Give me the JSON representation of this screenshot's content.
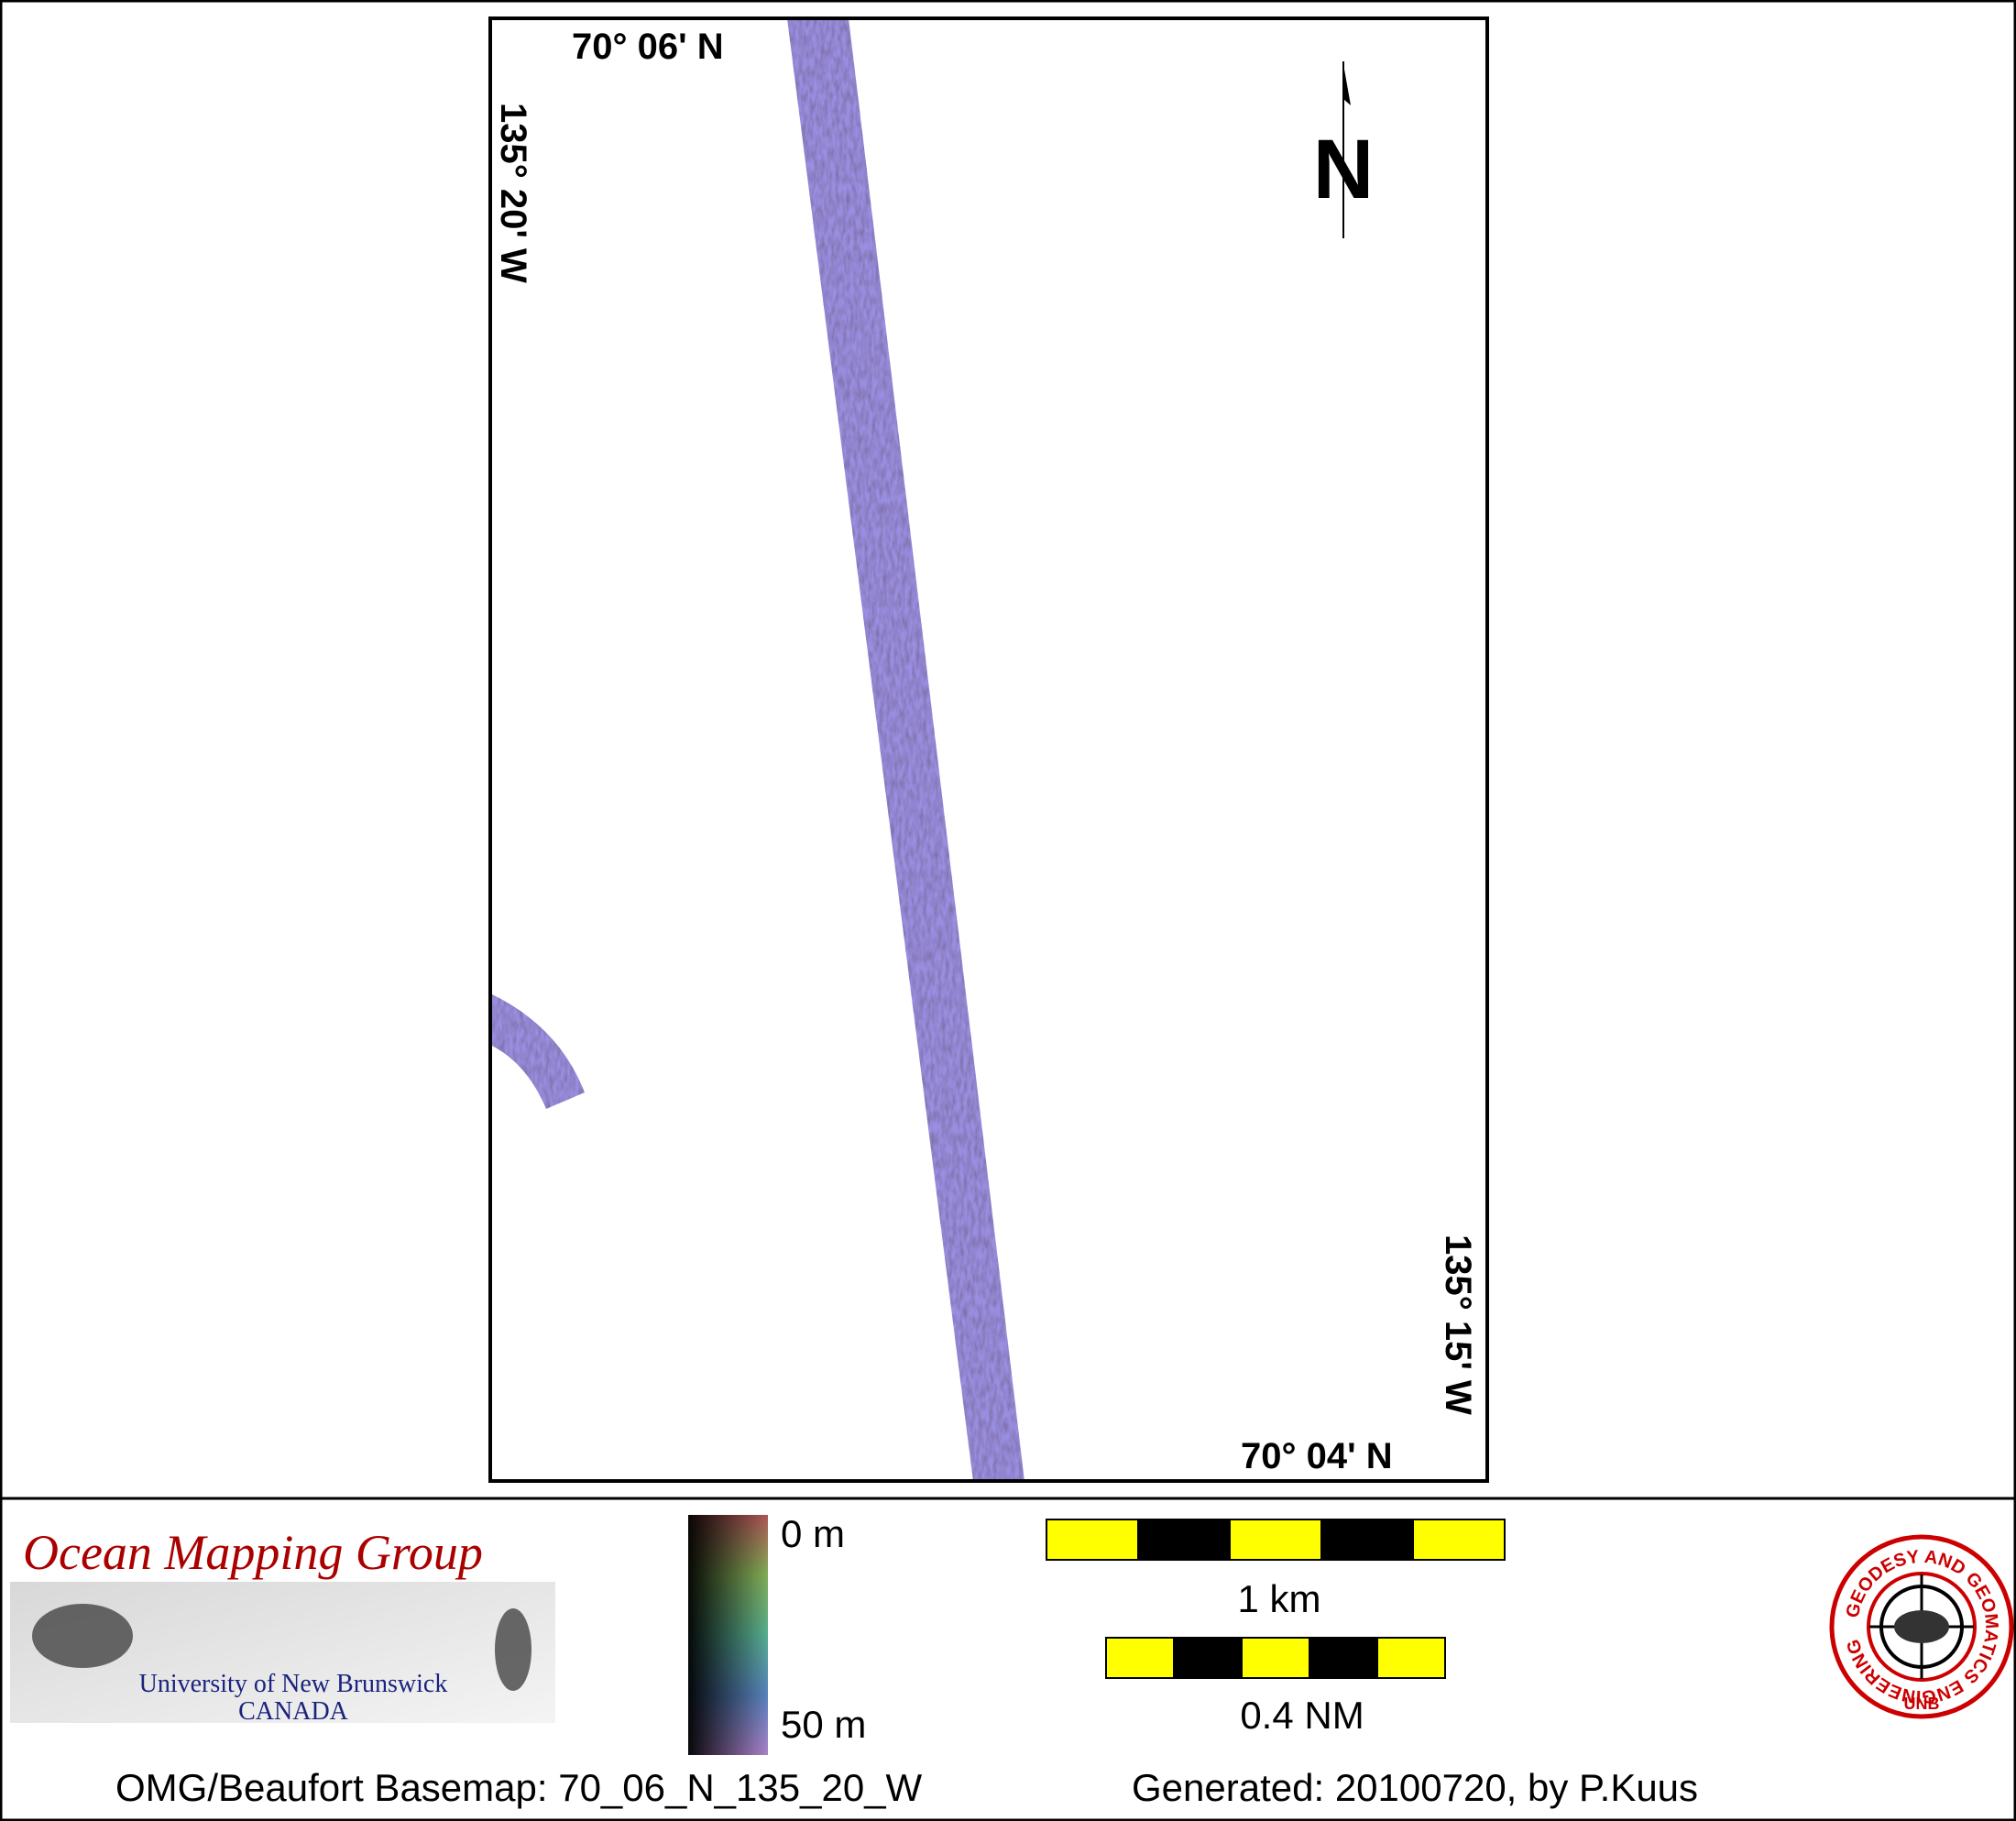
{
  "map": {
    "top_lat": "70° 06' N",
    "left_lon": "135° 20' W",
    "right_lon": "135° 15' W",
    "bottom_lat": "70° 04' N",
    "north": "N"
  },
  "logo": {
    "title": "Ocean Mapping Group",
    "university": "University of New Brunswick",
    "country": "CANADA"
  },
  "depth_legend": {
    "top": "0 m",
    "bottom": "50 m"
  },
  "scale_bars": [
    "1 km",
    "0.4 NM"
  ],
  "unb_logo": {
    "ring": "GEODESY AND GEOMATICS ENGINEERING",
    "bottom": "UNB"
  },
  "footer": {
    "basemap": "OMG/Beaufort Basemap: 70_06_N_135_20_W",
    "generated": "Generated: 20100720, by P.Kuus"
  }
}
